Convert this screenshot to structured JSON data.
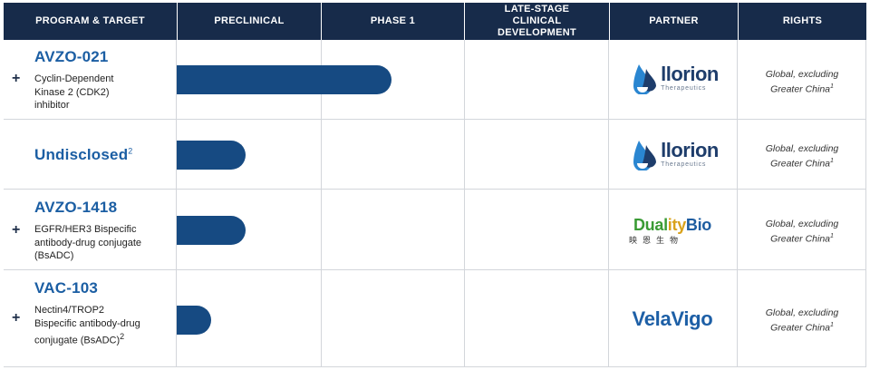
{
  "headers": {
    "program": "PROGRAM & TARGET",
    "preclinical": "PRECLINICAL",
    "phase1": "PHASE 1",
    "late_stage": "LATE-STAGE CLINICAL DEVELOPMENT",
    "partner": "PARTNER",
    "rights": "RIGHTS"
  },
  "rows": [
    {
      "name": "AVZO-021",
      "target": "Cyclin-Dependent Kinase 2 (CDK2) inhibitor",
      "expand": "+",
      "partner": "Ilorion Therapeutics",
      "partner_word": "llorion",
      "partner_sub": "Therapeutics",
      "rights_line1": "Global, excluding",
      "rights_line2": "Greater China",
      "rights_note": "1",
      "progress": "Phase 1"
    },
    {
      "name": "Undisclosed",
      "name_note": "2",
      "target": "",
      "partner": "Ilorion Therapeutics",
      "partner_word": "llorion",
      "partner_sub": "Therapeutics",
      "rights_line1": "Global, excluding",
      "rights_line2": "Greater China",
      "rights_note": "1",
      "progress": "Preclinical"
    },
    {
      "name": "AVZO-1418",
      "target": "EGFR/HER3 Bispecific antibody-drug conjugate (BsADC)",
      "expand": "+",
      "partner": "DualityBio",
      "partner_word_a": "Dual",
      "partner_word_b": "ity",
      "partner_word_c": "Bio",
      "partner_sub": "映恩生物",
      "rights_line1": "Global, excluding",
      "rights_line2": "Greater China",
      "rights_note": "1",
      "progress": "Preclinical"
    },
    {
      "name": "VAC-103",
      "target": "Nectin4/TROP2 Bispecific antibody-drug conjugate (BsADC)",
      "target_note": "2",
      "expand": "+",
      "partner": "VelaVigo",
      "partner_word": "VelaVigo",
      "rights_line1": "Global, excluding",
      "rights_line2": "Greater China",
      "rights_note": "1",
      "progress": "Preclinical"
    }
  ],
  "colors": {
    "header_bg": "#172b4a",
    "bar": "#164a82",
    "program_name": "#1b5ea3",
    "grid": "#d3d6db"
  },
  "icons": {
    "expand": "plus-icon",
    "llorion": "llorion-drop-logo",
    "duality": "duality-figure-logo",
    "velavigo": "velavigo-v-logo"
  }
}
